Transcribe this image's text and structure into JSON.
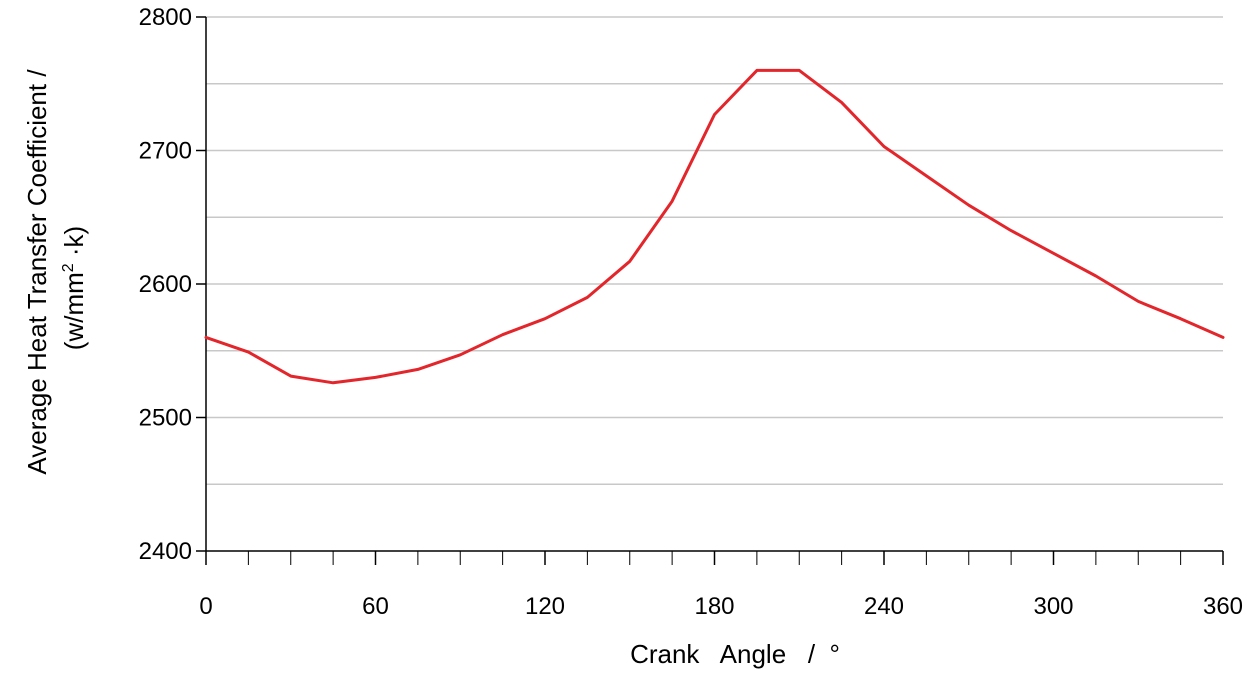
{
  "chart_data": {
    "type": "line",
    "xlabel": "Crank   Angle   /  °",
    "ylabel_line1": "Average Heat Transfer Coefficient /",
    "ylabel_line2_pre": "(w/mm",
    "ylabel_line2_sup": "2",
    "ylabel_line2_post": " ·k)",
    "xlim": [
      0,
      360
    ],
    "ylim": [
      2400,
      2800
    ],
    "x_ticks": [
      0,
      60,
      120,
      180,
      240,
      300,
      360
    ],
    "x_minor_ticks": [
      15,
      30,
      45,
      75,
      90,
      105,
      135,
      150,
      165,
      195,
      210,
      225,
      255,
      270,
      285,
      315,
      330,
      345
    ],
    "y_ticks": [
      2400,
      2500,
      2600,
      2700,
      2800
    ],
    "y_gridlines": [
      2450,
      2500,
      2550,
      2600,
      2650,
      2700,
      2750,
      2800
    ],
    "grid": true,
    "line_color": "#e3262b",
    "series": [
      {
        "x": [
          0,
          15,
          30,
          45,
          60,
          75,
          90,
          105,
          120,
          135,
          150,
          165,
          180,
          195,
          210,
          225,
          240,
          255,
          270,
          285,
          300,
          315,
          330,
          345,
          360
        ],
        "y": [
          2560,
          2549,
          2531,
          2526,
          2530,
          2536,
          2547,
          2562,
          2574,
          2590,
          2617,
          2662,
          2727,
          2760,
          2760,
          2736,
          2703,
          2681,
          2659,
          2640,
          2623,
          2606,
          2587,
          2574,
          2560
        ]
      }
    ]
  }
}
